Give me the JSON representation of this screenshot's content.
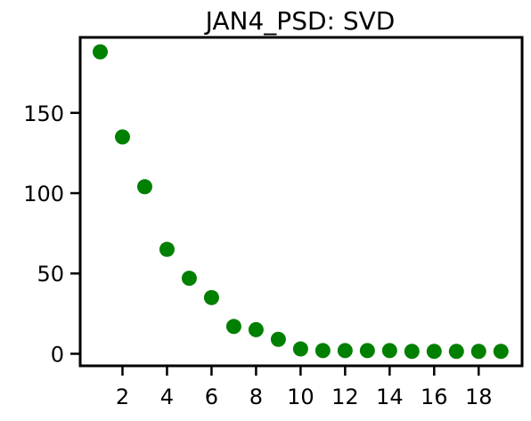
{
  "chart_data": {
    "type": "scatter",
    "title": "JAN4_PSD: SVD",
    "xlabel": "",
    "ylabel": "",
    "x": [
      1,
      2,
      3,
      4,
      5,
      6,
      7,
      8,
      9,
      10,
      11,
      12,
      13,
      14,
      15,
      16,
      17,
      18,
      19
    ],
    "y": [
      188,
      135,
      104,
      65,
      47,
      35,
      17,
      15,
      9,
      3,
      2,
      2,
      2,
      2,
      1.5,
      1.5,
      1.5,
      1.5,
      1.5
    ],
    "xlim": [
      0.1,
      19.95
    ],
    "ylim": [
      -7.5,
      197
    ],
    "x_ticks": [
      2,
      4,
      6,
      8,
      10,
      12,
      14,
      16,
      18
    ],
    "y_ticks": [
      0,
      50,
      100,
      150
    ],
    "marker_color": "#008000",
    "grid": false,
    "legend": "none"
  }
}
